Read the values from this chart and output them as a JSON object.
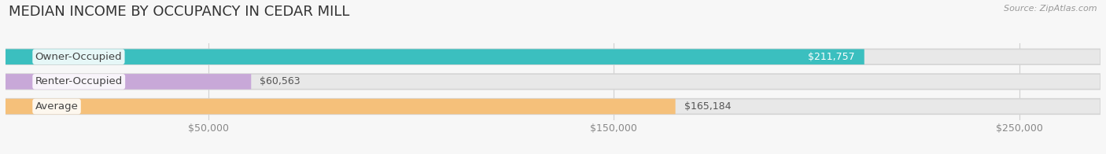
{
  "title": "MEDIAN INCOME BY OCCUPANCY IN CEDAR MILL",
  "source": "Source: ZipAtlas.com",
  "categories": [
    "Owner-Occupied",
    "Renter-Occupied",
    "Average"
  ],
  "values": [
    211757,
    60563,
    165184
  ],
  "bar_colors": [
    "#3bbfbf",
    "#c8a8d8",
    "#f5c07a"
  ],
  "value_labels": [
    "$211,757",
    "$60,563",
    "$165,184"
  ],
  "value_label_inside": [
    true,
    false,
    false
  ],
  "value_label_colors": [
    "white",
    "#555555",
    "#555555"
  ],
  "tick_labels": [
    "$50,000",
    "$150,000",
    "$250,000"
  ],
  "tick_values": [
    50000,
    150000,
    250000
  ],
  "xmax": 270000,
  "background_color": "#f7f7f7",
  "bar_bg_color": "#e8e8e8",
  "title_fontsize": 13,
  "label_fontsize": 9.5,
  "value_fontsize": 9,
  "tick_fontsize": 9,
  "bar_height": 0.62,
  "bar_gap": 0.38,
  "label_tag_color": "white",
  "label_tag_alpha": 0.88
}
